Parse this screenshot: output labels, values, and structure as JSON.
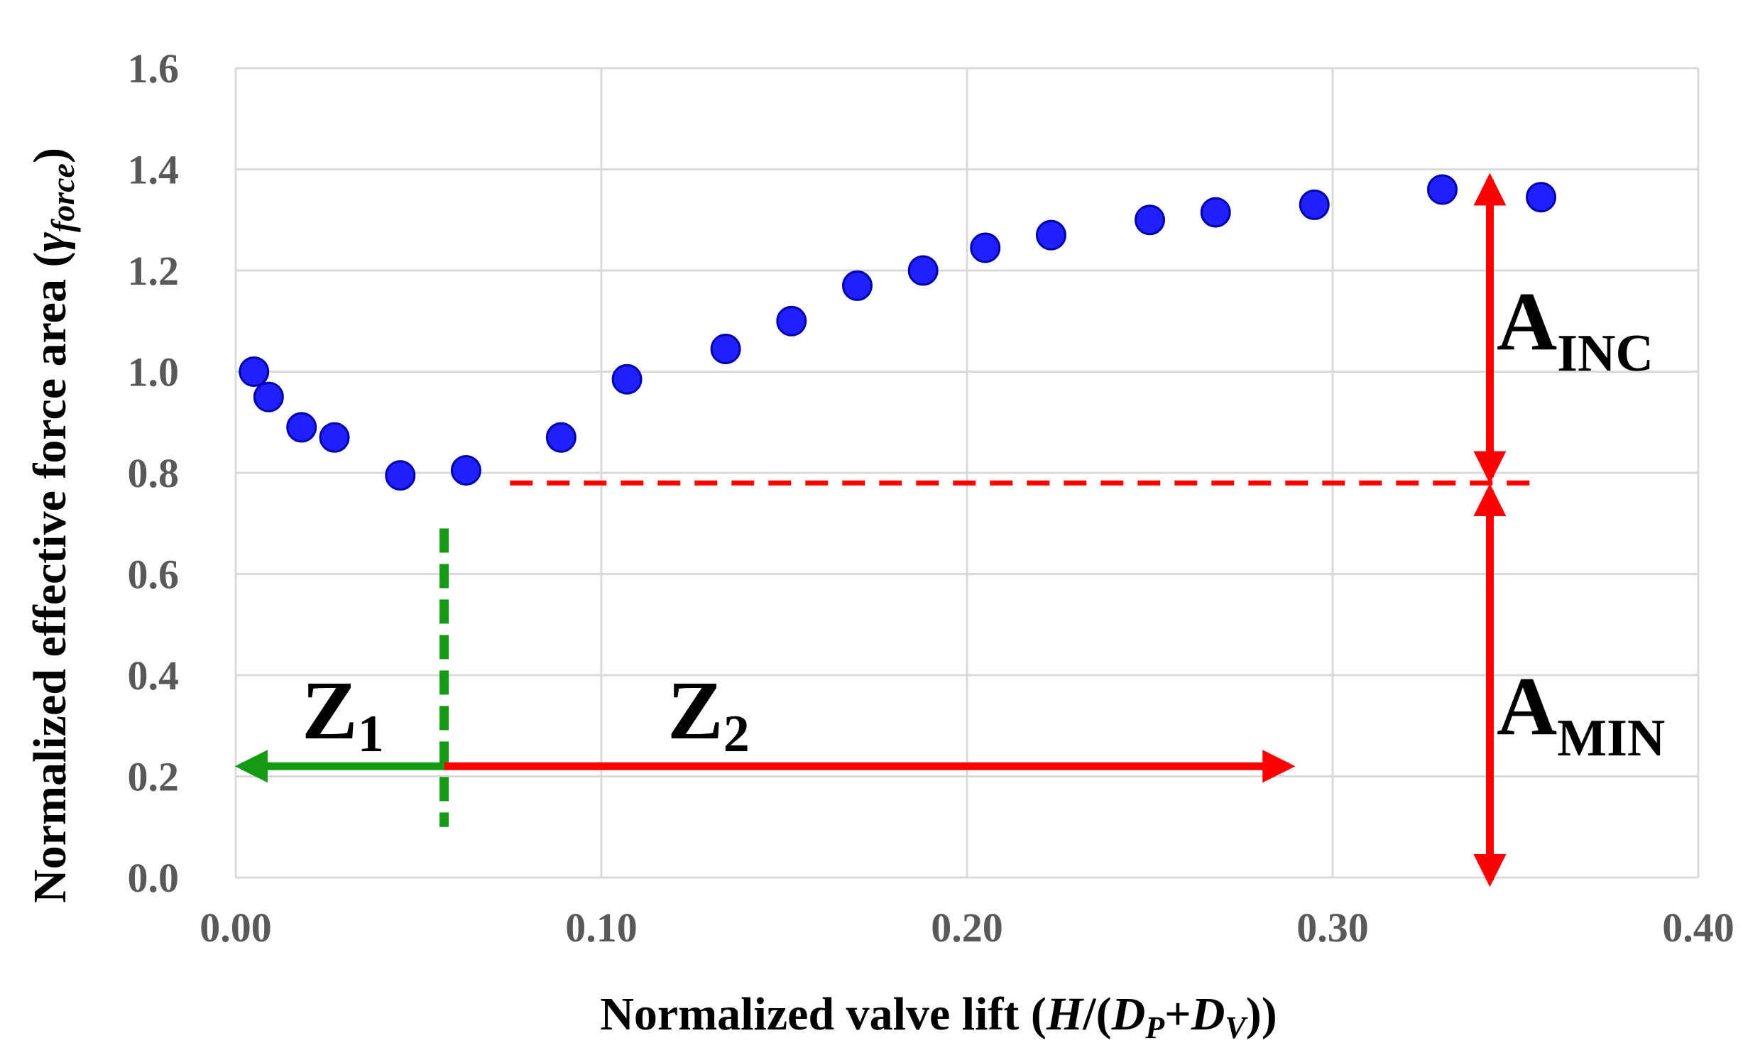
{
  "chart_data": {
    "type": "scatter",
    "xlabel": {
      "prefix": "Normalized valve lift (",
      "H": "H",
      "mid1": "/(",
      "D1": "D",
      "sub1": "P",
      "plus": "+",
      "D2": "D",
      "sub2": "V",
      "suffix": "))"
    },
    "ylabel": {
      "prefix": "Normalized effective force area (",
      "gamma": "γ",
      "sub": "force",
      "suffix": ")"
    },
    "xlim": [
      0,
      0.4
    ],
    "ylim": [
      0,
      1.6
    ],
    "x_ticks": [
      "0.00",
      "0.10",
      "0.20",
      "0.30",
      "0.40"
    ],
    "y_ticks": [
      "0.0",
      "0.2",
      "0.4",
      "0.6",
      "0.8",
      "1.0",
      "1.2",
      "1.4",
      "1.6"
    ],
    "grid": true,
    "series": [
      {
        "name": "gamma_force",
        "color": "#1f1fff",
        "x": [
          0.005,
          0.009,
          0.018,
          0.027,
          0.045,
          0.063,
          0.089,
          0.107,
          0.134,
          0.152,
          0.17,
          0.188,
          0.205,
          0.223,
          0.25,
          0.268,
          0.295,
          0.33,
          0.357
        ],
        "y": [
          1.0,
          0.95,
          0.89,
          0.87,
          0.795,
          0.805,
          0.87,
          0.985,
          1.045,
          1.1,
          1.17,
          1.2,
          1.245,
          1.27,
          1.3,
          1.315,
          1.33,
          1.36,
          1.345
        ]
      }
    ],
    "annotations": {
      "min_level_y": 0.78,
      "dashed_red_x_range": [
        0.075,
        0.357
      ],
      "zone_boundary_x": 0.057,
      "zone_boundary_y_range": [
        0.1,
        0.69
      ],
      "zone_arrow_y": 0.22,
      "z2_arrow_end_x": 0.288,
      "vertical_arrow_x": 0.343,
      "a_inc_y_range": [
        0.78,
        1.38
      ],
      "a_min_y_range": [
        0,
        0.78
      ],
      "colors": {
        "red": "#ff0000",
        "green": "#159a15"
      },
      "labels": {
        "z1_main": "Z",
        "z1_sub": "1",
        "z2_main": "Z",
        "z2_sub": "2",
        "a_inc_main": "A",
        "a_inc_sub": "INC",
        "a_min_main": "A",
        "a_min_sub": "MIN"
      }
    }
  }
}
